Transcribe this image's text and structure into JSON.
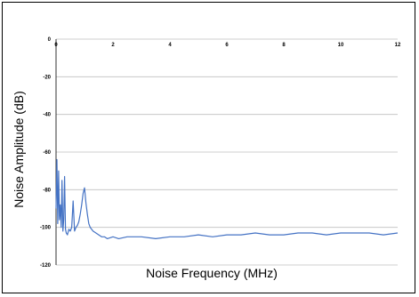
{
  "chart_data": {
    "type": "line",
    "title": "",
    "xlabel": "Noise Frequency (MHz)",
    "ylabel": "Noise Amplitude (dB)",
    "xlim": [
      0,
      12
    ],
    "ylim": [
      -120,
      0
    ],
    "x_ticks": [
      "0",
      "2",
      "4",
      "6",
      "8",
      "10",
      "12"
    ],
    "y_ticks": [
      "0",
      "-20",
      "-40",
      "-60",
      "-80",
      "-100",
      "-120"
    ],
    "x_tick_values": [
      0,
      2,
      4,
      6,
      8,
      10,
      12
    ],
    "y_tick_values": [
      0,
      -20,
      -40,
      -60,
      -80,
      -100,
      -120
    ],
    "grid": "horizontal",
    "legend": "none",
    "series_color": "#4472c4",
    "series": [
      {
        "x": [
          0.0,
          0.03,
          0.06,
          0.09,
          0.12,
          0.15,
          0.18,
          0.21,
          0.24,
          0.27,
          0.3,
          0.33,
          0.36,
          0.4,
          0.45,
          0.5,
          0.55,
          0.6,
          0.65,
          0.7,
          0.75,
          0.8,
          0.85,
          0.9,
          0.95,
          1.0,
          1.05,
          1.1,
          1.15,
          1.2,
          1.3,
          1.4,
          1.5,
          1.6,
          1.7,
          1.8,
          2.0,
          2.2,
          2.5,
          3.0,
          3.5,
          4.0,
          4.5,
          5.0,
          5.5,
          6.0,
          6.5,
          7.0,
          7.5,
          8.0,
          8.5,
          9.0,
          9.5,
          10.0,
          10.5,
          11.0,
          11.5,
          12.0
        ],
        "y": [
          -90,
          -64,
          -98,
          -70,
          -96,
          -88,
          -100,
          -75,
          -102,
          -96,
          -73,
          -101,
          -103,
          -104,
          -101,
          -102,
          -100,
          -86,
          -102,
          -100,
          -99,
          -97,
          -93,
          -88,
          -82,
          -79,
          -87,
          -93,
          -98,
          -100,
          -102,
          -103,
          -104,
          -105,
          -105,
          -106,
          -105,
          -106,
          -105,
          -105,
          -106,
          -105,
          -105,
          -104,
          -105,
          -104,
          -104,
          -103,
          -104,
          -104,
          -103,
          -103,
          -104,
          -103,
          -103,
          -103,
          -104,
          -103
        ]
      }
    ]
  }
}
